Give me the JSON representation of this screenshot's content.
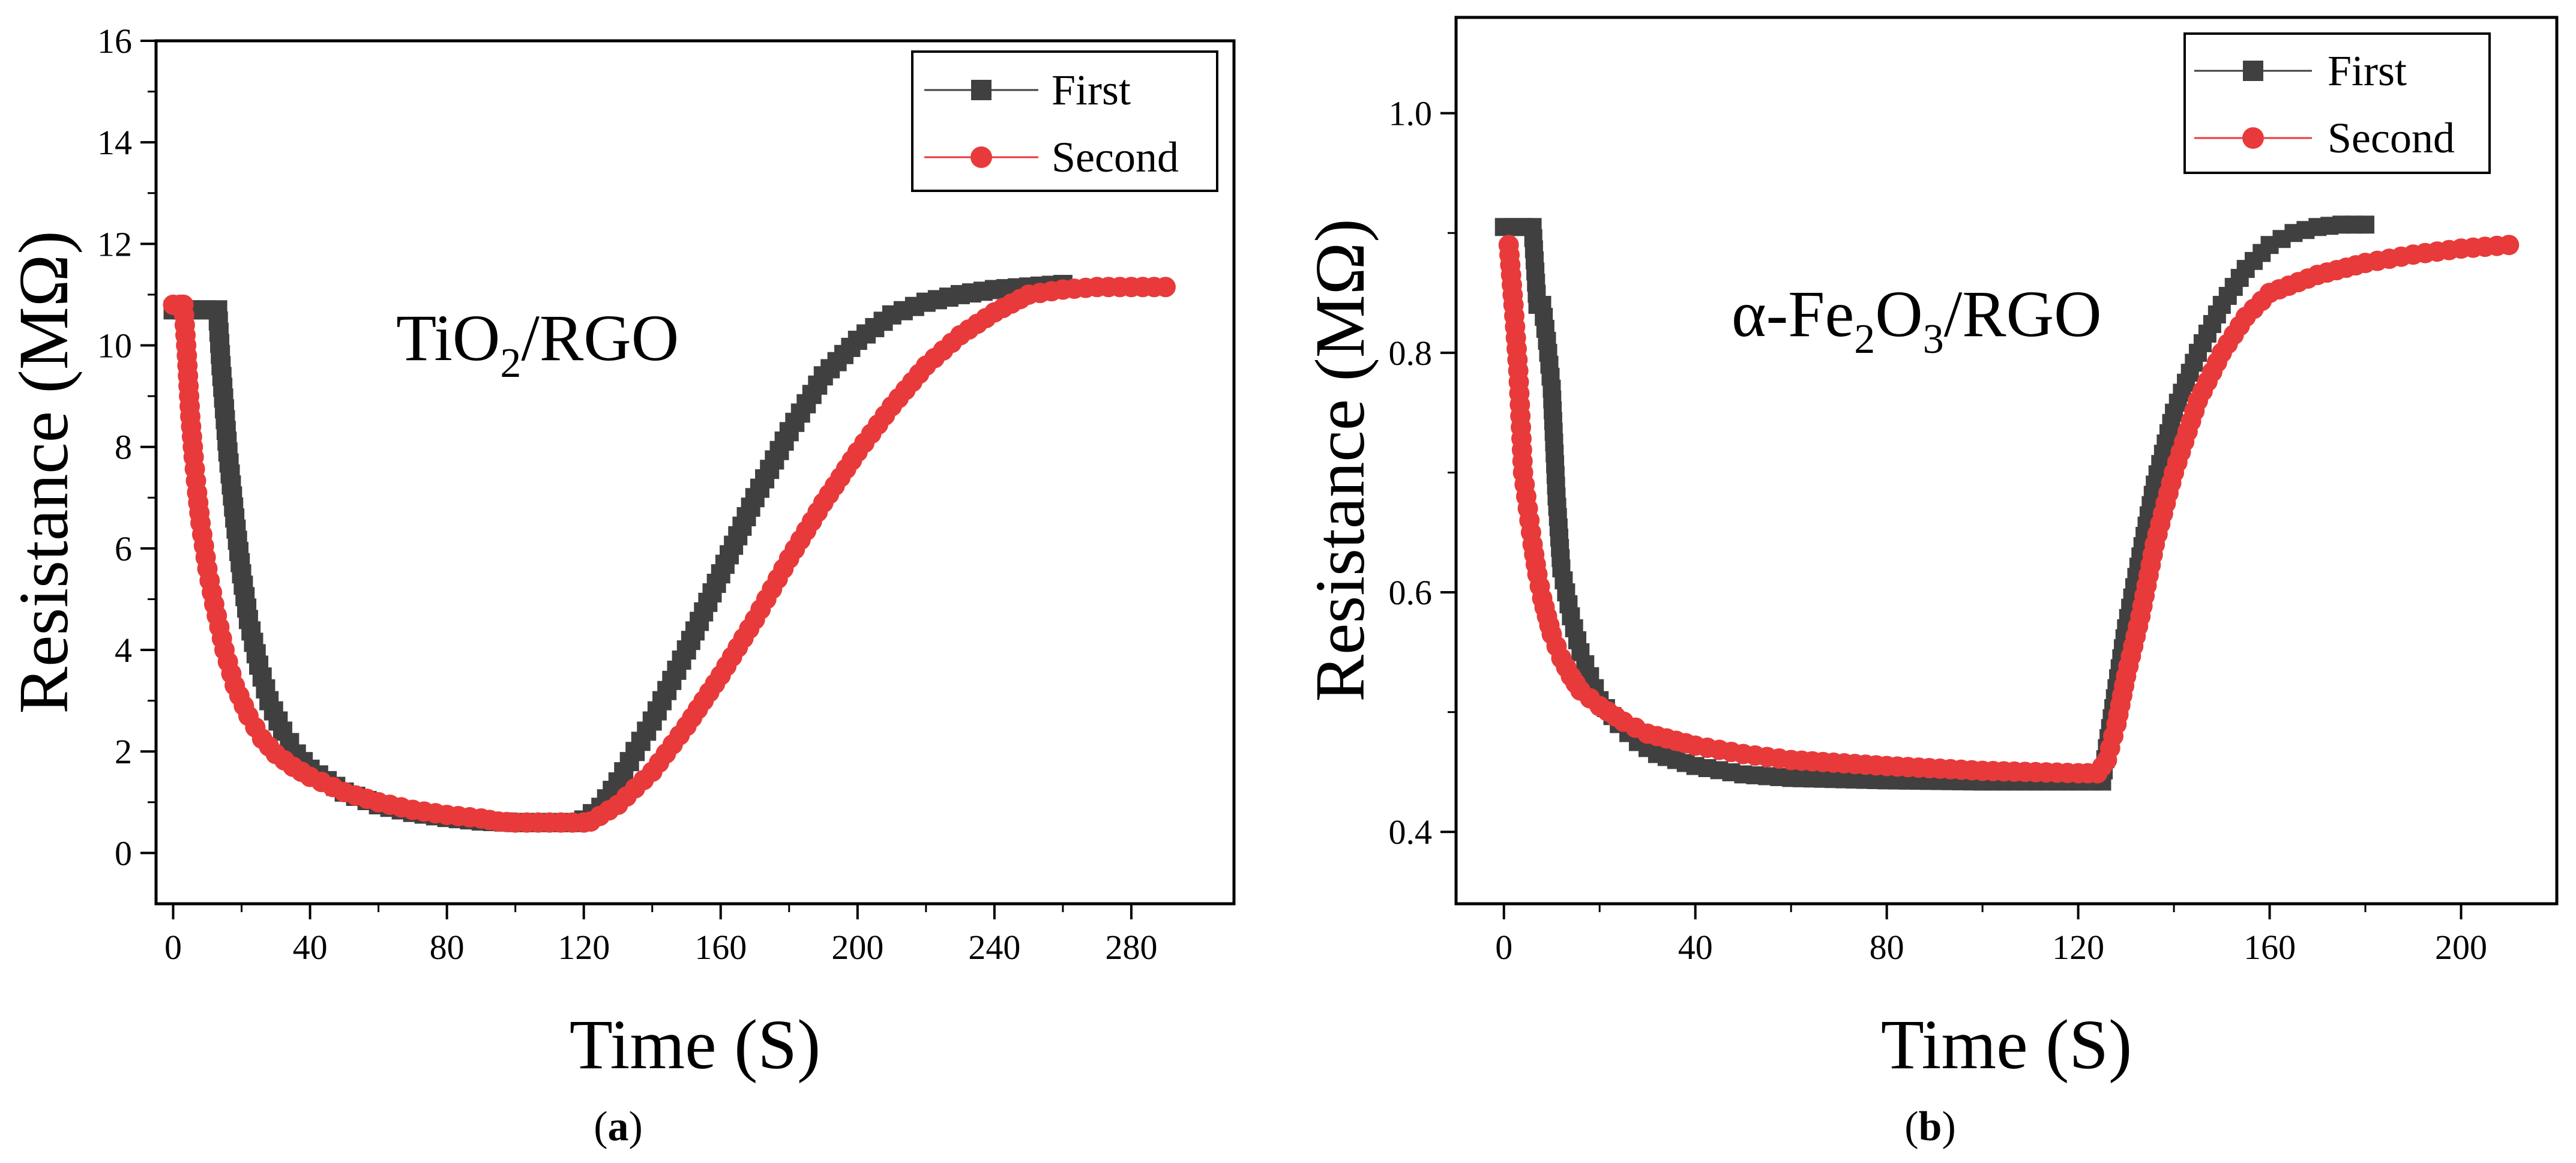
{
  "figure": {
    "panel_a_label": "a",
    "panel_b_label": "b"
  },
  "chart_data": [
    {
      "type": "scatter",
      "panel": "a",
      "annotation": {
        "main": "TiO",
        "sub": "2",
        "tail": "/RGO"
      },
      "xlabel": "Time (S)",
      "ylabel": "Resistance (MΩ)",
      "xlim": [
        -5,
        310
      ],
      "ylim": [
        -1,
        16
      ],
      "xticks": [
        0,
        40,
        80,
        120,
        160,
        200,
        240,
        280
      ],
      "yticks": [
        0,
        2,
        4,
        6,
        8,
        10,
        12,
        14,
        16
      ],
      "xtick_labels": [
        "0",
        "40",
        "80",
        "120",
        "160",
        "200",
        "240",
        "280"
      ],
      "ytick_labels": [
        "0",
        "2",
        "4",
        "6",
        "8",
        "10",
        "12",
        "14",
        "16"
      ],
      "legend_position": "top-right",
      "series": [
        {
          "name": "First",
          "marker": "square",
          "color": "#404040",
          "x": [
            0,
            5,
            10,
            13,
            14,
            16,
            18,
            20,
            22,
            25,
            28,
            32,
            36,
            40,
            50,
            60,
            70,
            80,
            90,
            100,
            110,
            118,
            120,
            125,
            130,
            140,
            150,
            160,
            170,
            180,
            190,
            200,
            210,
            220,
            230,
            240,
            250,
            260
          ],
          "y": [
            10.7,
            10.7,
            10.7,
            10.7,
            9.6,
            7.9,
            6.6,
            5.5,
            4.6,
            3.7,
            3.0,
            2.4,
            1.95,
            1.65,
            1.2,
            0.95,
            0.8,
            0.7,
            0.63,
            0.6,
            0.6,
            0.6,
            0.65,
            0.9,
            1.4,
            2.6,
            4.0,
            5.5,
            7.0,
            8.3,
            9.4,
            10.1,
            10.6,
            10.85,
            11.0,
            11.1,
            11.15,
            11.2
          ]
        },
        {
          "name": "Second",
          "marker": "circle",
          "color": "#e83a3a",
          "x": [
            0,
            2,
            3,
            4,
            5,
            6,
            7,
            8,
            10,
            12,
            15,
            18,
            22,
            26,
            30,
            35,
            40,
            50,
            60,
            70,
            80,
            90,
            95,
            100,
            110,
            120,
            122,
            130,
            140,
            150,
            160,
            170,
            180,
            190,
            200,
            210,
            220,
            230,
            240,
            250,
            260,
            270,
            280,
            290
          ],
          "y": [
            10.8,
            10.8,
            10.8,
            9.8,
            8.6,
            7.8,
            7.1,
            6.5,
            5.6,
            4.9,
            4.0,
            3.3,
            2.7,
            2.25,
            1.95,
            1.7,
            1.5,
            1.2,
            1.0,
            0.85,
            0.75,
            0.68,
            0.62,
            0.6,
            0.6,
            0.6,
            0.62,
            0.95,
            1.6,
            2.5,
            3.5,
            4.6,
            5.8,
            6.9,
            7.9,
            8.8,
            9.6,
            10.2,
            10.65,
            11.0,
            11.1,
            11.15,
            11.15,
            11.15
          ]
        }
      ]
    },
    {
      "type": "scatter",
      "panel": "b",
      "annotation": {
        "main": "α-Fe",
        "sub1": "2",
        "mid": "O",
        "sub2": "3",
        "tail": "/RGO"
      },
      "xlabel": "Time (S)",
      "ylabel": "Resistance (MΩ)",
      "xlim": [
        -10,
        220
      ],
      "ylim": [
        0.34,
        1.08
      ],
      "xticks": [
        0,
        40,
        80,
        120,
        160,
        200
      ],
      "yticks": [
        0.4,
        0.6,
        0.8,
        1.0
      ],
      "xtick_labels": [
        "0",
        "40",
        "80",
        "120",
        "160",
        "200"
      ],
      "ytick_labels": [
        "0.4",
        "0.6",
        "0.8",
        "1.0"
      ],
      "legend_position": "top-right",
      "series": [
        {
          "name": "First",
          "marker": "square",
          "color": "#404040",
          "x": [
            0,
            2,
            4,
            6,
            7,
            8,
            9,
            10,
            11,
            12,
            13,
            14,
            16,
            18,
            20,
            24,
            28,
            32,
            40,
            50,
            60,
            80,
            100,
            120,
            125,
            126,
            128,
            130,
            133,
            136,
            140,
            145,
            150,
            155,
            160,
            165,
            170,
            175,
            180
          ],
          "y": [
            0.905,
            0.905,
            0.905,
            0.905,
            0.84,
            0.84,
            0.81,
            0.77,
            0.68,
            0.62,
            0.6,
            0.58,
            0.55,
            0.53,
            0.51,
            0.49,
            0.475,
            0.465,
            0.455,
            0.448,
            0.445,
            0.443,
            0.442,
            0.442,
            0.442,
            0.47,
            0.52,
            0.57,
            0.63,
            0.69,
            0.75,
            0.8,
            0.84,
            0.87,
            0.89,
            0.9,
            0.905,
            0.907,
            0.907
          ]
        },
        {
          "name": "Second",
          "marker": "circle",
          "color": "#e83a3a",
          "x": [
            1,
            2,
            3,
            4,
            5,
            6,
            7,
            8,
            9,
            10,
            12,
            14,
            16,
            20,
            25,
            30,
            40,
            50,
            60,
            80,
            100,
            120,
            124,
            126,
            128,
            130,
            133,
            136,
            140,
            145,
            150,
            155,
            160,
            170,
            180,
            190,
            200,
            210
          ],
          "y": [
            0.89,
            0.84,
            0.785,
            0.7,
            0.67,
            0.64,
            0.615,
            0.595,
            0.58,
            0.565,
            0.545,
            0.53,
            0.518,
            0.505,
            0.492,
            0.482,
            0.472,
            0.465,
            0.46,
            0.455,
            0.451,
            0.449,
            0.449,
            0.46,
            0.49,
            0.53,
            0.58,
            0.64,
            0.7,
            0.76,
            0.8,
            0.83,
            0.85,
            0.865,
            0.875,
            0.882,
            0.887,
            0.89
          ]
        }
      ]
    }
  ]
}
